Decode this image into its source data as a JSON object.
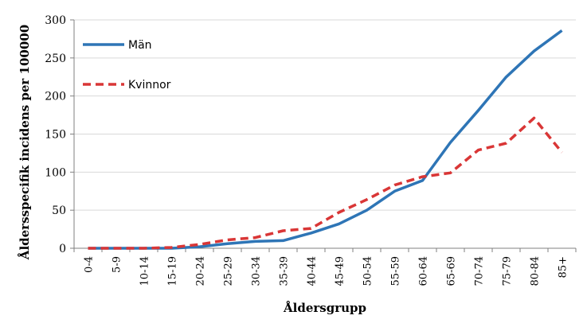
{
  "chart_data": {
    "type": "line",
    "title": "",
    "xlabel": "Åldersgrupp",
    "ylabel": "Åldersspecifik incidens per 100000",
    "ylim": [
      0,
      300
    ],
    "yticks": [
      0,
      50,
      100,
      150,
      200,
      250,
      300
    ],
    "grid": true,
    "legend_position": "top-left",
    "categories": [
      "0-4",
      "5-9",
      "10-14",
      "15-19",
      "20-24",
      "25-29",
      "30-34",
      "35-39",
      "40-44",
      "45-49",
      "50-54",
      "55-59",
      "60-64",
      "65-69",
      "70-74",
      "75-79",
      "80-84",
      "85+"
    ],
    "series": [
      {
        "name": "Män",
        "color": "#2e75b6",
        "dash": "solid",
        "values": [
          0,
          0,
          0,
          0,
          2,
          6,
          9,
          10,
          20,
          32,
          50,
          75,
          89,
          139,
          181,
          225,
          259,
          286
        ]
      },
      {
        "name": "Kvinnor",
        "color": "#d93636",
        "dash": "dashed",
        "values": [
          0,
          0,
          0,
          1,
          5,
          11,
          14,
          23,
          26,
          47,
          64,
          83,
          94,
          99,
          129,
          138,
          171,
          126
        ]
      }
    ]
  }
}
